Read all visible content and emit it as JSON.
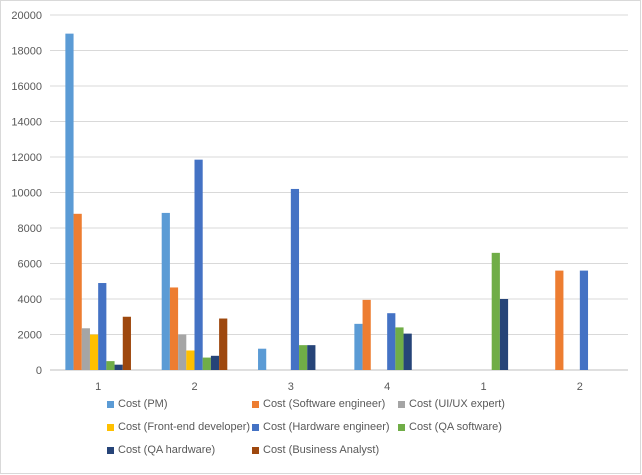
{
  "chart_data": {
    "type": "bar",
    "categories": [
      "1",
      "2",
      "3",
      "4",
      "1",
      "2"
    ],
    "ylim": [
      0,
      20000
    ],
    "yticks": [
      0,
      2000,
      4000,
      6000,
      8000,
      10000,
      12000,
      14000,
      16000,
      18000,
      20000
    ],
    "grid": true,
    "legend_position": "bottom",
    "series": [
      {
        "name": "Cost (PM)",
        "color": "#5b9bd5",
        "values": [
          18950,
          8850,
          1200,
          2600,
          0,
          0
        ]
      },
      {
        "name": "Cost (Software engineer)",
        "color": "#ed7d31",
        "values": [
          8800,
          4650,
          0,
          3950,
          0,
          5600
        ]
      },
      {
        "name": "Cost (UI/UX expert)",
        "color": "#a5a5a5",
        "values": [
          2350,
          2000,
          0,
          0,
          0,
          0
        ]
      },
      {
        "name": "Cost (Front-end developer)",
        "color": "#ffc000",
        "values": [
          2000,
          1100,
          0,
          0,
          0,
          0
        ]
      },
      {
        "name": "Cost (Hardware engineer)",
        "color": "#4472c4",
        "values": [
          4900,
          11850,
          10200,
          3200,
          0,
          5600
        ]
      },
      {
        "name": "Cost (QA software)",
        "color": "#70ad47",
        "values": [
          500,
          700,
          1400,
          2400,
          6600,
          0
        ]
      },
      {
        "name": "Cost (QA hardware)",
        "color": "#264478",
        "values": [
          300,
          800,
          1400,
          2050,
          4000,
          0
        ]
      },
      {
        "name": "Cost (Business Analyst)",
        "color": "#9e480e",
        "values": [
          3000,
          2900,
          0,
          0,
          0,
          0
        ]
      }
    ]
  }
}
